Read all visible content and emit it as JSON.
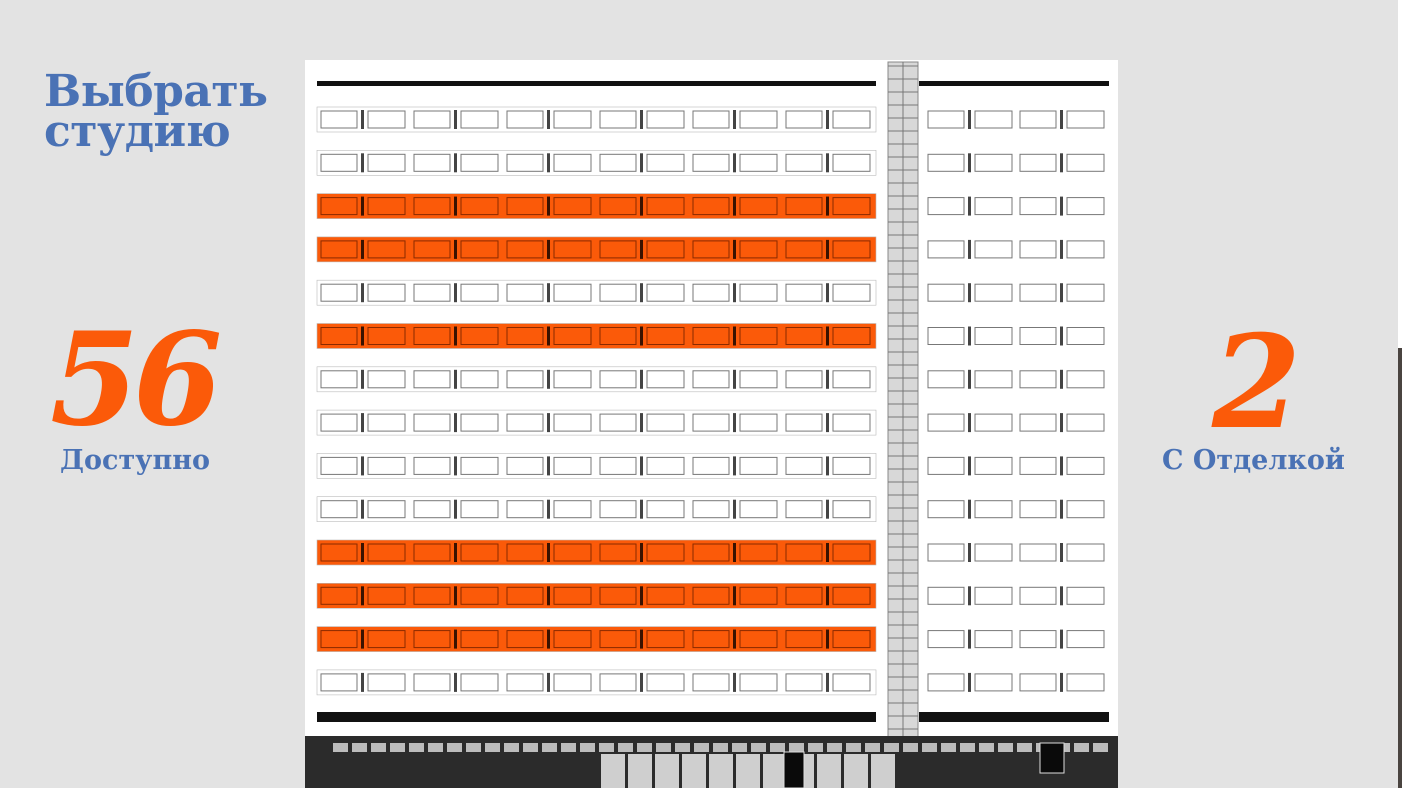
{
  "page": {
    "title_lines": [
      "Выбрать",
      "студию"
    ]
  },
  "stats": {
    "available": {
      "value": "56",
      "label": "Доступно"
    },
    "finished": {
      "value": "2",
      "label": "С Отделкой"
    }
  },
  "colors": {
    "accent": "#fb5a09",
    "brand": "#4a72b5",
    "background": "#e3e3e3"
  },
  "building": {
    "highlight_color": "#fb5a09",
    "floors": [
      {
        "highlighted": false
      },
      {
        "highlighted": false
      },
      {
        "highlighted": true
      },
      {
        "highlighted": true
      },
      {
        "highlighted": false
      },
      {
        "highlighted": true
      },
      {
        "highlighted": false
      },
      {
        "highlighted": false
      },
      {
        "highlighted": false
      },
      {
        "highlighted": false
      },
      {
        "highlighted": true
      },
      {
        "highlighted": true
      },
      {
        "highlighted": true
      },
      {
        "highlighted": false
      }
    ]
  }
}
